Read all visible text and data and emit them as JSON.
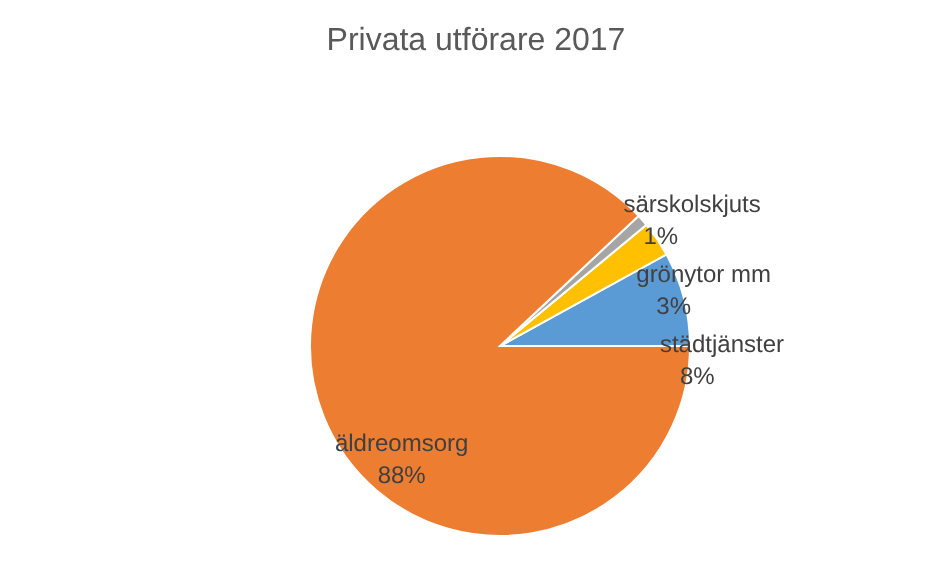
{
  "chart_data": {
    "type": "pie",
    "title": "Privata utförare 2017",
    "categories": [
      "städtjänster",
      "grönytor mm",
      "särskolskjuts",
      "äldreomsorg"
    ],
    "values": [
      8,
      3,
      1,
      88
    ],
    "value_labels": [
      "8%",
      "3%",
      "1%",
      "88%"
    ],
    "colors": [
      "#5b9bd5",
      "#ffc000",
      "#a5a5a5",
      "#ed7d31"
    ]
  }
}
